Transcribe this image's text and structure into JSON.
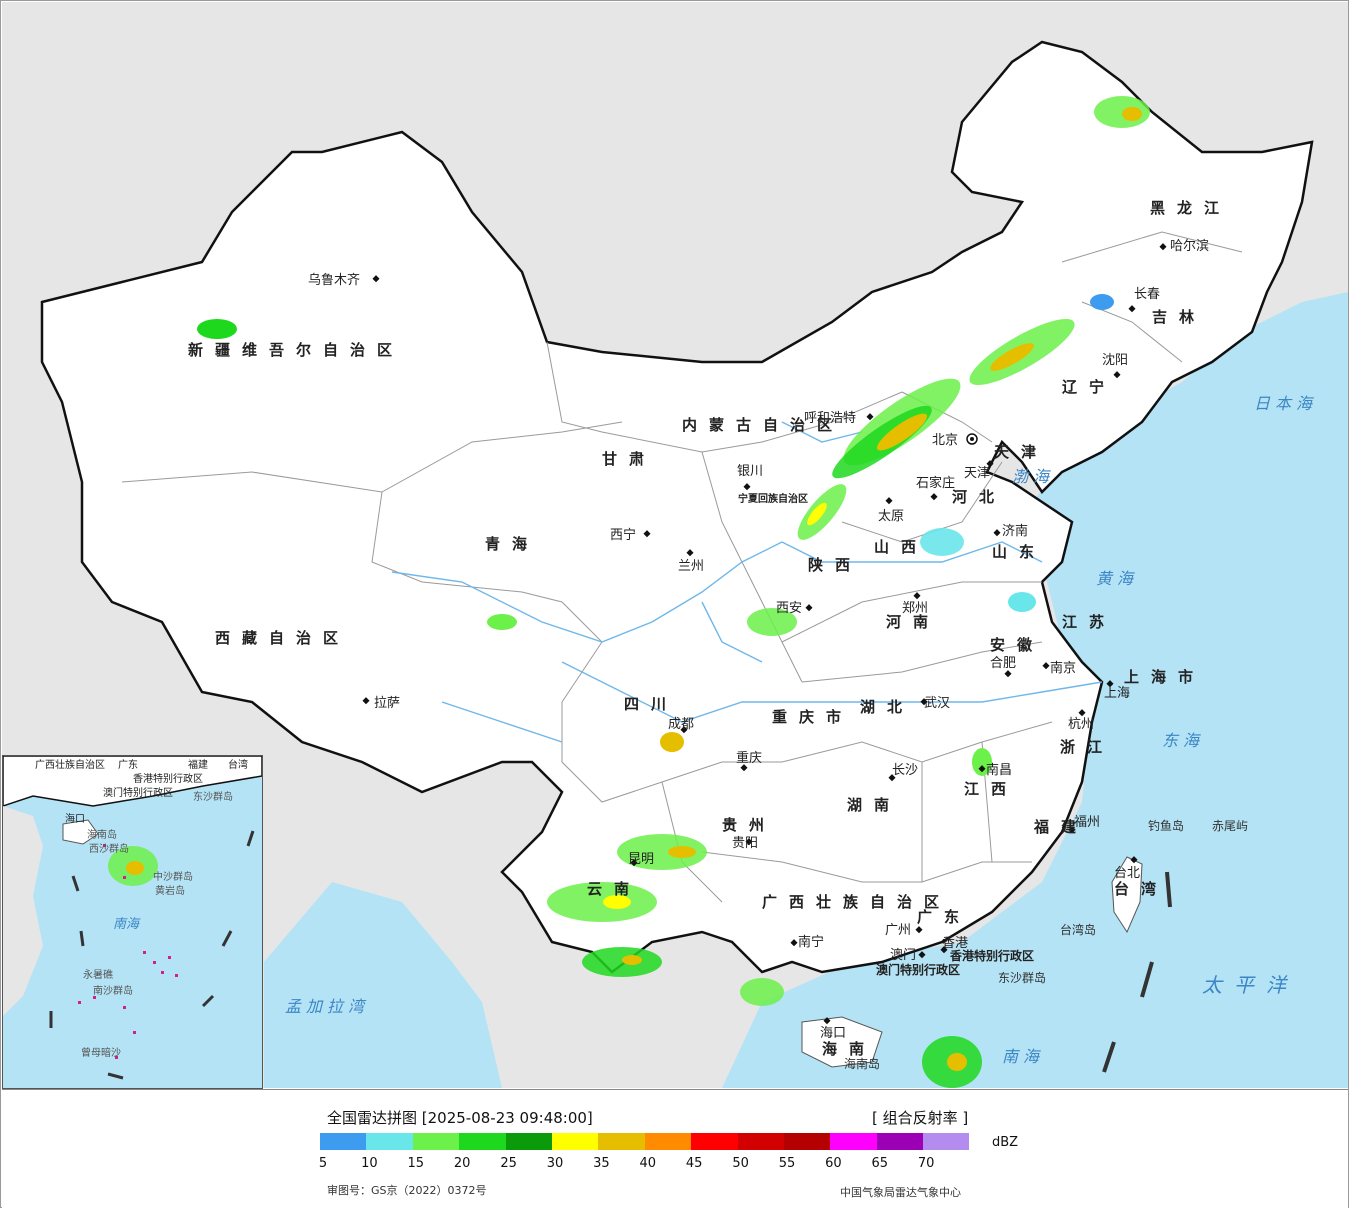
{
  "map": {
    "colors": {
      "land": "#ffffff",
      "foreign_land": "#e6e6e6",
      "sea": "#b4e3f5",
      "border": "#111111",
      "river": "#6fb7ea"
    },
    "cities": [
      {
        "name": "乌鲁木齐"
      },
      {
        "name": "拉萨"
      },
      {
        "name": "西宁"
      },
      {
        "name": "兰州"
      },
      {
        "name": "银川"
      },
      {
        "name": "呼和浩特"
      },
      {
        "name": "北京"
      },
      {
        "name": "天津"
      },
      {
        "name": "石家庄"
      },
      {
        "name": "太原"
      },
      {
        "name": "济南"
      },
      {
        "name": "郑州"
      },
      {
        "name": "西安"
      },
      {
        "name": "成都"
      },
      {
        "name": "重庆"
      },
      {
        "name": "贵阳"
      },
      {
        "name": "昆明"
      },
      {
        "name": "南宁"
      },
      {
        "name": "广州"
      },
      {
        "name": "澳门"
      },
      {
        "name": "香港"
      },
      {
        "name": "海口"
      },
      {
        "name": "长沙"
      },
      {
        "name": "武汉"
      },
      {
        "name": "南昌"
      },
      {
        "name": "福州"
      },
      {
        "name": "台北"
      },
      {
        "name": "杭州"
      },
      {
        "name": "上海"
      },
      {
        "name": "南京"
      },
      {
        "name": "合肥"
      },
      {
        "name": "沈阳"
      },
      {
        "name": "长春"
      },
      {
        "name": "哈尔滨"
      }
    ],
    "provinces": [
      "新疆维吾尔自治区",
      "西藏自治区",
      "青海",
      "甘肃",
      "内蒙古自治区",
      "黑龙江",
      "吉林",
      "辽宁",
      "河北",
      "山西",
      "山东",
      "河南",
      "陕西",
      "四川",
      "重庆市",
      "贵州",
      "云南",
      "广西壮族自治区",
      "广东",
      "海南",
      "湖南",
      "湖北",
      "江西",
      "福建",
      "台湾",
      "浙江",
      "江苏",
      "安徽",
      "上海市",
      "天津",
      "宁夏回族自治区",
      "香港特别行政区",
      "澳门特别行政区"
    ],
    "seas": [
      "日本海",
      "渤海",
      "黄海",
      "东海",
      "太平洋",
      "南海",
      "孟加拉湾"
    ],
    "islands": [
      "钓鱼岛",
      "赤尾屿",
      "台湾岛",
      "东沙群岛",
      "海南岛"
    ]
  },
  "inset": {
    "labels": [
      "广西壮族自治区",
      "广东",
      "福建",
      "台湾",
      "香港特别行政区",
      "澳门特别行政区",
      "东沙群岛",
      "海口",
      "海南岛",
      "西沙群岛",
      "中沙群岛",
      "黄岩岛",
      "南海",
      "永暑礁",
      "南沙群岛",
      "曾母暗沙"
    ]
  },
  "legend": {
    "title": "全国雷达拼图 [2025-08-23 09:48:00]",
    "product": "[ 组合反射率 ]",
    "unit": "dBZ",
    "ticks": [
      "5",
      "10",
      "15",
      "20",
      "25",
      "30",
      "35",
      "40",
      "45",
      "50",
      "55",
      "60",
      "65",
      "70"
    ],
    "colors": [
      "#3d9cf0",
      "#69e6ea",
      "#6cf04a",
      "#1ed81e",
      "#0a9a0a",
      "#ffff00",
      "#e6be00",
      "#ff8c00",
      "#ff0000",
      "#d20000",
      "#b40000",
      "#ff00ff",
      "#9c00b4",
      "#b48cf0"
    ],
    "review_number": "审图号：GS京（2022）0372号",
    "source": "中国气象局雷达气象中心"
  }
}
